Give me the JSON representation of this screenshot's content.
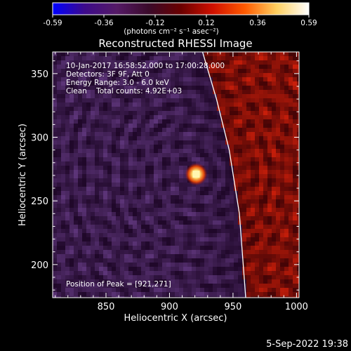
{
  "colorbar": {
    "tick_labels": [
      "-0.59",
      "-0.36",
      "-0.12",
      "0.12",
      "0.36",
      "0.59"
    ],
    "units": "(photons cm⁻² s⁻¹ asec⁻²)",
    "range": [
      -0.59,
      0.59
    ],
    "colors": [
      "#0000ff",
      "#3d0a8a",
      "#551a66",
      "#3a0a2a",
      "#6a0000",
      "#d01000",
      "#ff5a00",
      "#ffd060",
      "#ffffff"
    ]
  },
  "title": "Reconstructed RHESSI Image",
  "overlay": {
    "time_range": "10-Jan-2017 16:58:52.000 to 17:00:28.000",
    "detectors": "Detectors: 3F 9F, Att 0",
    "energy": "Energy Range: 3.0 - 6.0 keV",
    "clean": "Clean    Total counts: 4.92E+03",
    "peak": "Position of Peak = [921,271]"
  },
  "axes": {
    "xlabel": "Heliocentric X (arcsec)",
    "ylabel": "Heliocentric Y (arcsec)",
    "xlim": [
      808,
      1002
    ],
    "ylim": [
      174,
      367
    ],
    "xticks": [
      850,
      900,
      950,
      1000
    ],
    "xtick_labels": [
      "850",
      "900",
      "950",
      "1000"
    ],
    "yticks": [
      200,
      250,
      300,
      350
    ],
    "ytick_labels": [
      "200",
      "250",
      "300",
      "350"
    ]
  },
  "image_content": {
    "peak_position": [
      921,
      271
    ],
    "limb_arc": [
      [
        926,
        367
      ],
      [
        937,
        330
      ],
      [
        947,
        290
      ],
      [
        955,
        240
      ],
      [
        960,
        174
      ]
    ],
    "colors": {
      "limb": "#ffffff",
      "peak": "#fff6b0",
      "dark_side": "#3a0f3e",
      "bright_side": "#8a0e0a"
    }
  },
  "footer": {
    "timestamp": "5-Sep-2022 19:38"
  }
}
